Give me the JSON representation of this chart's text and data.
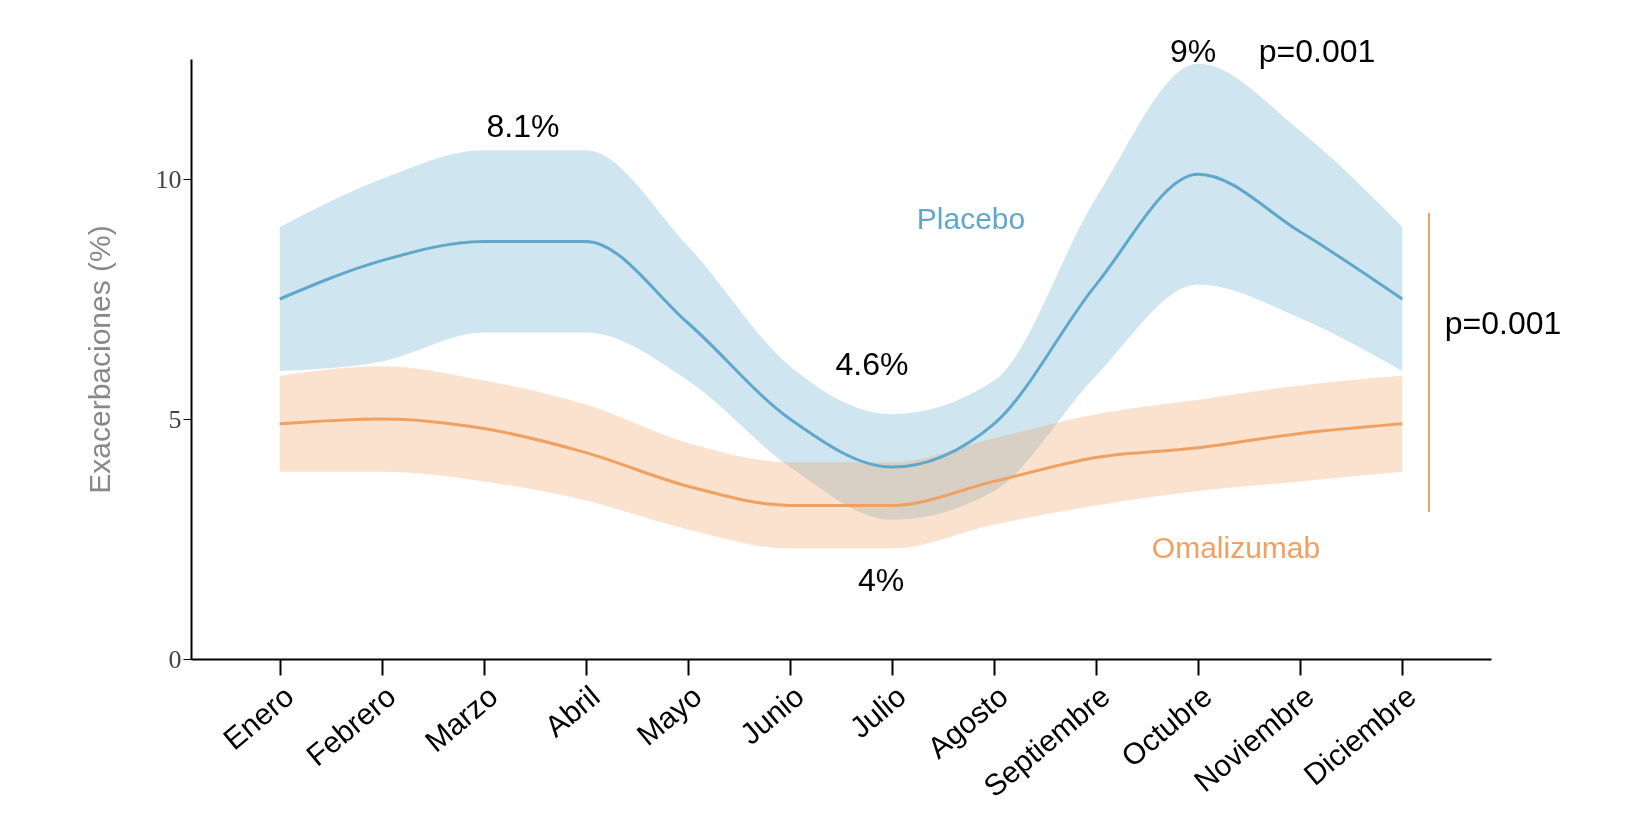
{
  "chart_data": {
    "type": "line",
    "ylabel": "Exacerbaciones (%)",
    "categories": [
      "Enero",
      "Febrero",
      "Marzo",
      "Abril",
      "Mayo",
      "Junio",
      "Julio",
      "Agosto",
      "Septiembre",
      "Octubre",
      "Noviembre",
      "Diciembre"
    ],
    "series": [
      {
        "name": "Placebo",
        "color": "#5fa8cc",
        "values": [
          7.5,
          8.3,
          8.7,
          8.7,
          7.0,
          5.0,
          4.0,
          4.9,
          7.8,
          10.1,
          8.9,
          7.5
        ],
        "lower": [
          6.0,
          6.2,
          6.8,
          6.8,
          5.8,
          4.0,
          2.9,
          3.5,
          5.9,
          7.8,
          7.1,
          6.0
        ],
        "upper": [
          9.0,
          10.0,
          10.6,
          10.6,
          8.6,
          6.1,
          5.1,
          5.8,
          9.6,
          12.4,
          11.0,
          9.0
        ]
      },
      {
        "name": "Omalizumab",
        "color": "#f0a060",
        "values": [
          4.9,
          5.0,
          4.8,
          4.3,
          3.6,
          3.2,
          3.2,
          3.7,
          4.2,
          4.4,
          4.7,
          4.9
        ],
        "lower": [
          3.9,
          3.9,
          3.7,
          3.3,
          2.7,
          2.3,
          2.3,
          2.8,
          3.2,
          3.5,
          3.7,
          3.9
        ],
        "upper": [
          5.9,
          6.1,
          5.8,
          5.3,
          4.5,
          4.1,
          4.1,
          4.6,
          5.1,
          5.4,
          5.7,
          5.9
        ]
      }
    ],
    "ylim": [
      0,
      12.5
    ],
    "yticks": [
      0,
      5,
      10
    ],
    "grid": false,
    "legend": false,
    "marker": "none",
    "line_style": "solid",
    "annotations": [
      "8.1%",
      "4.6%",
      "4%",
      "9%",
      "p=0.001",
      "p=0.001"
    ]
  }
}
